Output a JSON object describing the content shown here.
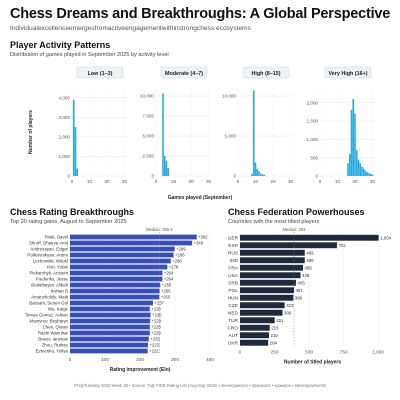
{
  "header": {
    "title": "Chess Dreams and Breakthroughs: A Global Perspective",
    "subtitle": "Individualexcellenceemergesfromactiveengagementwithinstrongchess ecosystems"
  },
  "colors": {
    "activity_bar": "#29a9e0",
    "rating_bar": "#3a4fb3",
    "federation_bar": "#1e2a3a",
    "facet_bg": "#eef2f7"
  },
  "sections": {
    "activity": {
      "title": "Player Activity Patterns",
      "subtitle": "Distribution of games played in September 2025 by activity level"
    },
    "rating": {
      "title": "Chess Rating Breakthroughs",
      "subtitle": "Top 20 rating gains, August to September 2025"
    },
    "federation": {
      "title": "Chess Federation Powerhouses",
      "subtitle": "Countries with the most titled players"
    }
  },
  "caption": "#TidyTuesday 2025 Week 38 • Source: Tidy FIDE Rating List (Aug-Sep 2025) • stevenpawson • spawson1 • spawson • stevenpawson62",
  "chart_data": [
    {
      "type": "bar",
      "title": "Player Activity Patterns",
      "xlabel": "Games played (September)",
      "ylabel": "Number of players",
      "x_ticks": [
        0,
        10,
        20,
        30
      ],
      "facets": [
        {
          "label": "Low (1–3)",
          "ylim": [
            0,
            4500
          ],
          "y_ticks": [
            0,
            1000,
            2000,
            3000,
            4000
          ],
          "bins": [
            {
              "x": 1,
              "y": 3900
            },
            {
              "x": 2,
              "y": 2500
            },
            {
              "x": 3,
              "y": 380
            }
          ]
        },
        {
          "label": "Moderate (4–7)",
          "ylim": [
            0,
            11000
          ],
          "y_ticks": [
            0,
            2500,
            5000,
            7500,
            10000
          ],
          "bins": [
            {
              "x": 4,
              "y": 10300
            },
            {
              "x": 5,
              "y": 2500
            },
            {
              "x": 6,
              "y": 1900
            },
            {
              "x": 7,
              "y": 1000
            }
          ]
        },
        {
          "label": "High (8–15)",
          "ylim": [
            0,
            11000
          ],
          "y_ticks": [
            0,
            5000,
            10000
          ],
          "bins": [
            {
              "x": 8,
              "y": 300
            },
            {
              "x": 9,
              "y": 10700
            },
            {
              "x": 10,
              "y": 1700
            },
            {
              "x": 11,
              "y": 900
            },
            {
              "x": 12,
              "y": 600
            },
            {
              "x": 13,
              "y": 300
            },
            {
              "x": 14,
              "y": 200
            },
            {
              "x": 15,
              "y": 150
            }
          ]
        },
        {
          "label": "Very High (16+)",
          "ylim": [
            0,
            2400
          ],
          "y_ticks": [
            0,
            500,
            1000,
            1500,
            2000
          ],
          "bins": [
            {
              "x": 16,
              "y": 350
            },
            {
              "x": 17,
              "y": 600
            },
            {
              "x": 18,
              "y": 1800
            },
            {
              "x": 19,
              "y": 2100
            },
            {
              "x": 20,
              "y": 1700
            },
            {
              "x": 21,
              "y": 700
            },
            {
              "x": 22,
              "y": 450
            },
            {
              "x": 23,
              "y": 350
            },
            {
              "x": 24,
              "y": 250
            },
            {
              "x": 25,
              "y": 200
            },
            {
              "x": 26,
              "y": 150
            },
            {
              "x": 27,
              "y": 100
            },
            {
              "x": 28,
              "y": 80
            },
            {
              "x": 29,
              "y": 60
            },
            {
              "x": 30,
              "y": 40
            }
          ]
        }
      ]
    },
    {
      "type": "bar",
      "orientation": "horizontal",
      "title": "Chess Rating Breakthroughs",
      "xlabel": "Rating improvement (Elo)",
      "xlim": [
        0,
        400
      ],
      "x_ticks": [
        0,
        100,
        200,
        300,
        400
      ],
      "median_label": "Median: 255.5",
      "median": 255.5,
      "categories": [
        "Pitak, David",
        "Shroff, Dhairya Amit",
        "Andreasyan, Edgar",
        "Polikovnikyan, Artem",
        "Lechowski, Witold",
        "Kim, Yubin",
        "Piekarchyk, Artsiom",
        "Frederiks, Jesse",
        "Burkitbayev, Alibek",
        "Inshan B",
        "Amanzholuly, Madi",
        "Bassani, Seneri Gul",
        "Wu, Kaige",
        "Tomas Gomez, Adrian",
        "Mamyrov, Beybarys",
        "Chen, Qixian",
        "Rashi Wanuhar",
        "Basov, Iaroslav",
        "Zhou, Ruihao",
        "Evteenko, Yuliya"
      ],
      "values": [
        362,
        349,
        299,
        296,
        288,
        278,
        264,
        264,
        258,
        256,
        255,
        237,
        228,
        230,
        229,
        228,
        228,
        225,
        223,
        222
      ],
      "value_labels": [
        "+362",
        "+349",
        "+299",
        "+296",
        "+288",
        "+278",
        "+264",
        "+264",
        "+258",
        "+256",
        "+255",
        "+237",
        "+228",
        "+230",
        "+229",
        "+228",
        "+228",
        "+225",
        "+223",
        "+222"
      ]
    },
    {
      "type": "bar",
      "orientation": "horizontal",
      "title": "Chess Federation Powerhouses",
      "xlabel": "Number of titled players",
      "xlim": [
        0,
        1050
      ],
      "x_ticks": [
        0,
        250,
        500,
        750,
        1000
      ],
      "x_tick_labels": [
        "0",
        "250",
        "500",
        "750",
        "1,000"
      ],
      "median_label": "Median: 391",
      "median": 391,
      "categories": [
        "GER",
        "ESP",
        "RUS",
        "IND",
        "FRA",
        "USA",
        "SRB",
        "POL",
        "HUN",
        "CZE",
        "NED",
        "TUR",
        "CRO",
        "AUT",
        "UKR"
      ],
      "values": [
        1004,
        702,
        469,
        469,
        456,
        438,
        405,
        391,
        386,
        323,
        308,
        251,
        215,
        210,
        204
      ],
      "value_labels": [
        "1,004",
        "702",
        "469",
        "469",
        "456",
        "438",
        "405",
        "391",
        "386",
        "323",
        "308",
        "251",
        "215",
        "210",
        "204"
      ]
    }
  ]
}
